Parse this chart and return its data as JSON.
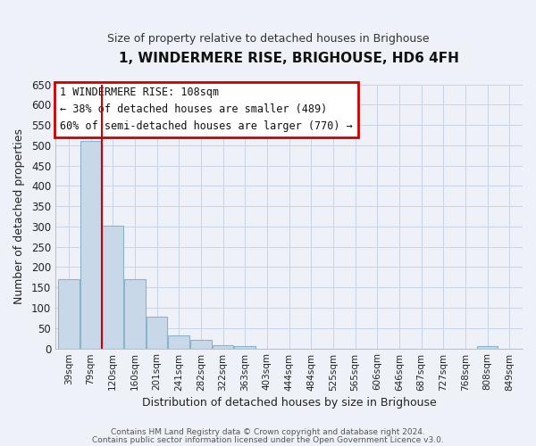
{
  "title": "1, WINDERMERE RISE, BRIGHOUSE, HD6 4FH",
  "subtitle": "Size of property relative to detached houses in Brighouse",
  "xlabel": "Distribution of detached houses by size in Brighouse",
  "ylabel": "Number of detached properties",
  "bar_labels": [
    "39sqm",
    "79sqm",
    "120sqm",
    "160sqm",
    "201sqm",
    "241sqm",
    "282sqm",
    "322sqm",
    "363sqm",
    "403sqm",
    "444sqm",
    "484sqm",
    "525sqm",
    "565sqm",
    "606sqm",
    "646sqm",
    "687sqm",
    "727sqm",
    "768sqm",
    "808sqm",
    "849sqm"
  ],
  "bar_values": [
    170,
    510,
    302,
    170,
    78,
    31,
    20,
    7,
    5,
    0,
    0,
    0,
    0,
    0,
    0,
    0,
    0,
    0,
    0,
    5,
    0
  ],
  "bar_color": "#c8d8e8",
  "bar_edge_color": "#8ab4cc",
  "vline_x": 1.5,
  "vline_color": "#cc0000",
  "ylim": [
    0,
    650
  ],
  "yticks": [
    0,
    50,
    100,
    150,
    200,
    250,
    300,
    350,
    400,
    450,
    500,
    550,
    600,
    650
  ],
  "annotation_title": "1 WINDERMERE RISE: 108sqm",
  "annotation_line1": "← 38% of detached houses are smaller (489)",
  "annotation_line2": "60% of semi-detached houses are larger (770) →",
  "annotation_box_color": "#cc0000",
  "grid_color": "#c8d4e4",
  "background_color": "#eef2f8",
  "footer1": "Contains HM Land Registry data © Crown copyright and database right 2024.",
  "footer2": "Contains public sector information licensed under the Open Government Licence v3.0."
}
